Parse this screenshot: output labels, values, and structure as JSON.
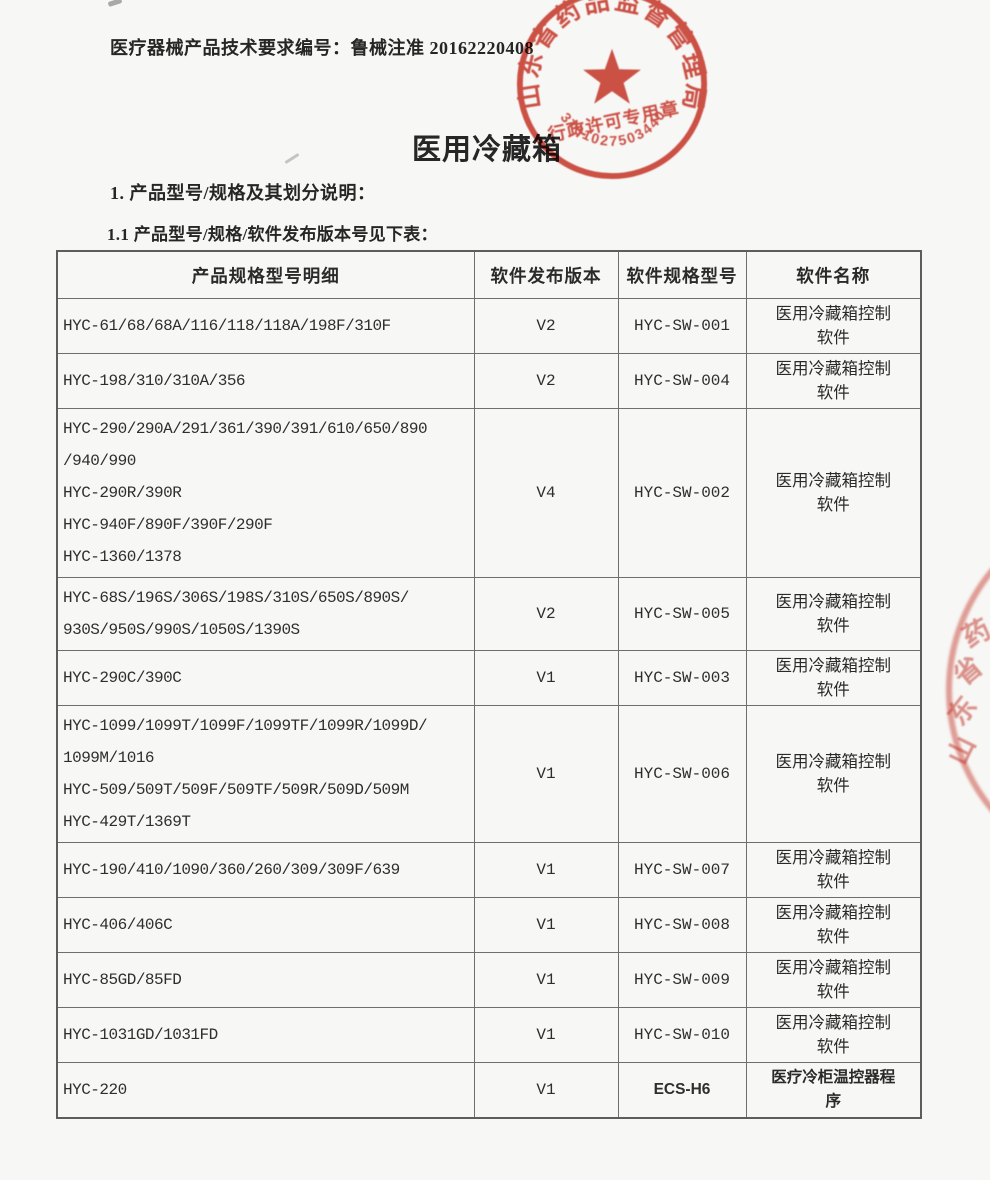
{
  "page": {
    "doc_number": "医疗器械产品技术要求编号：鲁械注准 20162220408",
    "title": "医用冷藏箱",
    "section_1": "1.  产品型号/规格及其划分说明：",
    "section_1_1": "1.1 产品型号/规格/软件发布版本号见下表："
  },
  "seal": {
    "authority": "山东省药品监督管理局",
    "center_label": "行政许可专用章",
    "serial": "3701027503440",
    "color": "#cf4438"
  },
  "partial_seal": {
    "visible_text": "药省东山",
    "color": "#cf4438"
  },
  "table": {
    "headers": [
      "产品规格型号明细",
      "软件发布版本",
      "软件规格型号",
      "软件名称"
    ],
    "rows": [
      {
        "models": [
          "HYC-61/68/68A/116/118/118A/198F/310F"
        ],
        "version": "V2",
        "sw_model": "HYC-SW-001",
        "sw_name": "医用冷藏箱控制软件",
        "alt_font": false
      },
      {
        "models": [
          "HYC-198/310/310A/356"
        ],
        "version": "V2",
        "sw_model": "HYC-SW-004",
        "sw_name": "医用冷藏箱控制软件",
        "alt_font": false
      },
      {
        "models": [
          "HYC-290/290A/291/361/390/391/610/650/890",
          "/940/990",
          "HYC-290R/390R",
          "HYC-940F/890F/390F/290F",
          "HYC-1360/1378"
        ],
        "version": "V4",
        "sw_model": "HYC-SW-002",
        "sw_name": "医用冷藏箱控制软件",
        "alt_font": false
      },
      {
        "models": [
          "HYC-68S/196S/306S/198S/310S/650S/890S/",
          "930S/950S/990S/1050S/1390S"
        ],
        "version": "V2",
        "sw_model": "HYC-SW-005",
        "sw_name": "医用冷藏箱控制软件",
        "alt_font": false
      },
      {
        "models": [
          "HYC-290C/390C"
        ],
        "version": "V1",
        "sw_model": "HYC-SW-003",
        "sw_name": "医用冷藏箱控制软件",
        "alt_font": false
      },
      {
        "models": [
          "HYC-1099/1099T/1099F/1099TF/1099R/1099D/",
          "1099M/1016",
          "HYC-509/509T/509F/509TF/509R/509D/509M",
          "HYC-429T/1369T"
        ],
        "version": "V1",
        "sw_model": "HYC-SW-006",
        "sw_name": "医用冷藏箱控制软件",
        "alt_font": false
      },
      {
        "models": [
          "HYC-190/410/1090/360/260/309/309F/639"
        ],
        "version": "V1",
        "sw_model": "HYC-SW-007",
        "sw_name": "医用冷藏箱控制软件",
        "alt_font": false
      },
      {
        "models": [
          "HYC-406/406C"
        ],
        "version": "V1",
        "sw_model": "HYC-SW-008",
        "sw_name": "医用冷藏箱控制软件",
        "alt_font": false
      },
      {
        "models": [
          "HYC-85GD/85FD"
        ],
        "version": "V1",
        "sw_model": "HYC-SW-009",
        "sw_name": "医用冷藏箱控制软件",
        "alt_font": false
      },
      {
        "models": [
          "HYC-1031GD/1031FD"
        ],
        "version": "V1",
        "sw_model": "HYC-SW-010",
        "sw_name": "医用冷藏箱控制软件",
        "alt_font": false
      },
      {
        "models": [
          "HYC-220"
        ],
        "version": "V1",
        "sw_model": "ECS-H6",
        "sw_name": "医疗冷柜温控器程序",
        "alt_font": true
      }
    ]
  }
}
